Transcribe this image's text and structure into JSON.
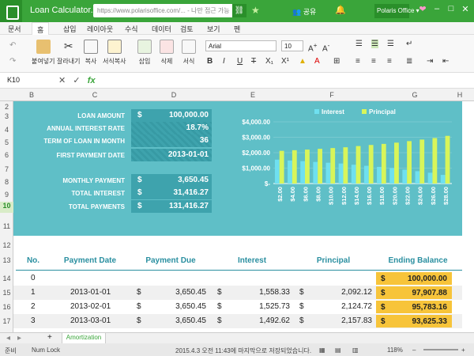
{
  "window": {
    "title": "Loan Calculator.xlsx",
    "url": "https://www.polarisoffice.com/... - 나만 접근 가능",
    "share_label": "공유",
    "account_label": "Polaris Office"
  },
  "menu_tabs": [
    "문서",
    "홈",
    "삽입",
    "레이아웃",
    "수식",
    "데이터",
    "검토",
    "보기",
    "펜"
  ],
  "ribbon": {
    "paste": "붙여넣기",
    "cut": "잘라내기",
    "copy": "복사",
    "format_copy": "서식복사",
    "insert": "삽입",
    "delete": "삭제",
    "format": "서식",
    "font": "Arial",
    "size": "10"
  },
  "formula_bar": {
    "cell_ref": "K10",
    "fx": "fx"
  },
  "columns": [
    "B",
    "C",
    "D",
    "E",
    "F",
    "G",
    "H"
  ],
  "rows": [
    "2",
    "3",
    "4",
    "5",
    "6",
    "7",
    "8",
    "9",
    "10",
    "11",
    "12",
    "13",
    "14",
    "15",
    "16",
    "17"
  ],
  "summary": {
    "inputs": [
      {
        "label": "LOAN AMOUNT",
        "currency": "$",
        "value": "100,000.00"
      },
      {
        "label": "ANNUAL INTEREST RATE",
        "currency": "",
        "value": "18.7%"
      },
      {
        "label": "TERM OF LOAN IN MONTH",
        "currency": "",
        "value": "36"
      },
      {
        "label": "FIRST PAYMENT DATE",
        "currency": "",
        "value": "2013-01-01"
      }
    ],
    "results": [
      {
        "label": "MONTHLY PAYMENT",
        "currency": "$",
        "value": "3,650.45"
      },
      {
        "label": "TOTAL INTEREST",
        "currency": "$",
        "value": "31,416.27"
      },
      {
        "label": "TOTAL PAYMENTS",
        "currency": "$",
        "value": "131,416.27"
      }
    ]
  },
  "chart_data": {
    "type": "bar",
    "categories": [
      "$2.00",
      "$4.00",
      "$6.00",
      "$8.00",
      "$10.00",
      "$12.00",
      "$14.00",
      "$16.00",
      "$18.00",
      "$20.00",
      "$22.00",
      "$24.00",
      "$26.00",
      "$28.00"
    ],
    "series": [
      {
        "name": "Interest",
        "color": "#6fe0f0",
        "values": [
          1550,
          1490,
          1450,
          1400,
          1350,
          1300,
          1220,
          1150,
          1080,
          1000,
          900,
          800,
          700,
          560
        ]
      },
      {
        "name": "Principal",
        "color": "#d8f55a",
        "values": [
          2120,
          2160,
          2200,
          2250,
          2300,
          2350,
          2430,
          2500,
          2570,
          2650,
          2750,
          2850,
          2950,
          3090
        ]
      }
    ],
    "yticks": [
      "$4,000.00",
      "$3,000.00",
      "$2,000.00",
      "$1,000.00",
      "$-"
    ],
    "ylim": [
      0,
      4000
    ],
    "legend": "top"
  },
  "table": {
    "headers": [
      "No.",
      "Payment Date",
      "Payment Due",
      "Interest",
      "Principal",
      "Ending Balance"
    ],
    "rows": [
      {
        "no": "0",
        "date": "",
        "due": "",
        "interest": "",
        "principal": "",
        "balance": "100,000.00"
      },
      {
        "no": "1",
        "date": "2013-01-01",
        "due": "3,650.45",
        "interest": "1,558.33",
        "principal": "2,092.12",
        "balance": "97,907.88"
      },
      {
        "no": "2",
        "date": "2013-02-01",
        "due": "3,650.45",
        "interest": "1,525.73",
        "principal": "2,124.72",
        "balance": "95,783.16"
      },
      {
        "no": "3",
        "date": "2013-03-01",
        "due": "3,650.45",
        "interest": "1,492.62",
        "principal": "2,157.83",
        "balance": "93,625.33"
      }
    ]
  },
  "sheet": {
    "add": "+",
    "tab": "Amortization"
  },
  "status": {
    "ready": "준비",
    "numlock": "Num Lock",
    "saved": "2015.4.3 오전 11:43에 마지막으로 저장되었습니다.",
    "zoom": "118%"
  }
}
